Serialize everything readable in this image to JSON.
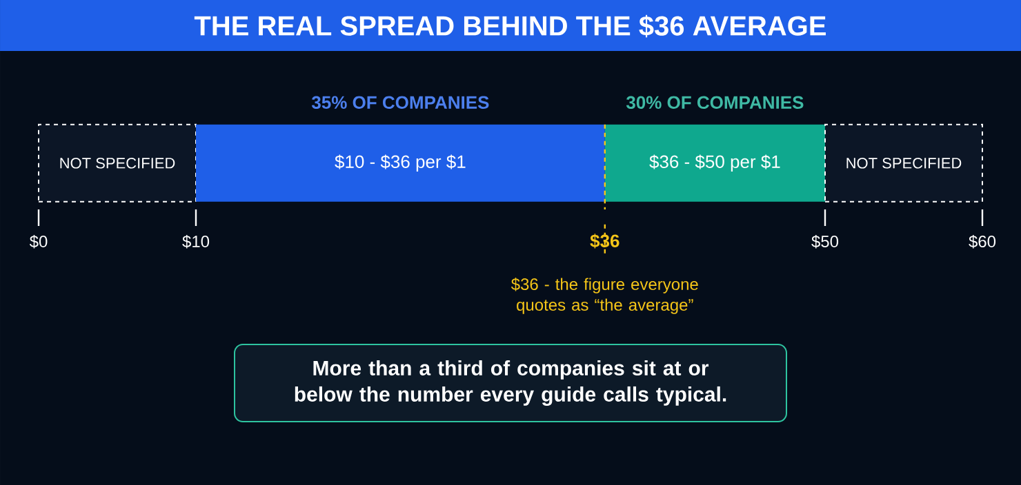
{
  "chart_data": {
    "type": "bar",
    "orientation": "horizontal",
    "stacked": true,
    "title": "THE REAL SPREAD BEHIND THE $36 AVERAGE",
    "categories": [
      null
    ],
    "series": [
      {
        "name": "NOT SPECIFIED",
        "color": "#0c1626",
        "line_style": "dashed",
        "values": [
          10
        ]
      },
      {
        "name": "$10 - $36 per $1",
        "color": "#1f5fe8",
        "values": [
          26
        ]
      },
      {
        "name": "$36 - $50 per $1",
        "color": "#0fa88e",
        "values": [
          14
        ]
      },
      {
        "name": "NOT SPECIFIED",
        "color": "#0c1626",
        "line_style": "dashed",
        "values": [
          10
        ]
      }
    ],
    "xlim": [
      0,
      60
    ],
    "xticks": [
      {
        "value": 0,
        "label": "$0"
      },
      {
        "value": 10,
        "label": "$10"
      },
      {
        "value": 50,
        "label": "$50"
      },
      {
        "value": 60,
        "label": "$60"
      }
    ],
    "ref_lines": [
      {
        "axis": "x",
        "value": 36,
        "label": "$36",
        "color": "#f5c518",
        "line_style": "dashed"
      }
    ],
    "annotations": [
      "35% OF COMPANIES",
      "30% OF COMPANIES",
      "$36 - the figure everyone quotes as “the average”",
      "More than a third of companies sit at or below the number every guide calls typical."
    ]
  }
}
